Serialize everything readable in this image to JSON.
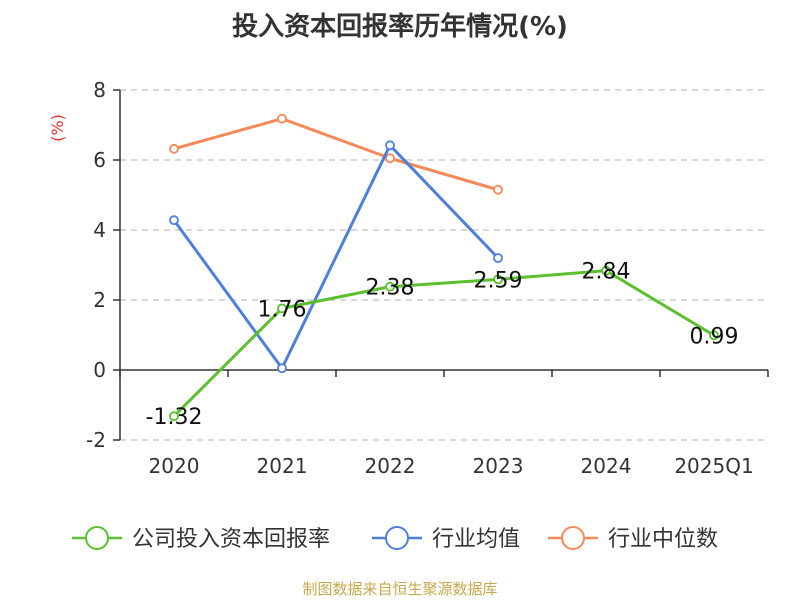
{
  "chart_data": {
    "type": "line",
    "title": "投入资本回报率历年情况(%)",
    "ylabel": "(%)",
    "categories": [
      "2020",
      "2021",
      "2022",
      "2023",
      "2024",
      "2025Q1"
    ],
    "yticks": [
      8,
      6,
      4,
      2,
      0,
      -2
    ],
    "ylim": [
      -2,
      8
    ],
    "grid": true,
    "legend_position": "bottom",
    "series": [
      {
        "name": "公司投入资本回报率",
        "color": "#5ac02d",
        "values": [
          -1.32,
          1.76,
          2.38,
          2.59,
          2.84,
          0.99
        ],
        "labels": [
          "-1.32",
          "1.76",
          "2.38",
          "2.59",
          "2.84",
          "0.99"
        ]
      },
      {
        "name": "行业均值",
        "color": "#4f7fdc",
        "values": [
          4.28,
          0.05,
          6.42,
          3.2,
          null,
          null
        ]
      },
      {
        "name": "行业中位数",
        "color": "#f5895a",
        "values": [
          6.32,
          7.18,
          6.05,
          5.15,
          null,
          null
        ]
      }
    ]
  },
  "footer": "制图数据来自恒生聚源数据库"
}
